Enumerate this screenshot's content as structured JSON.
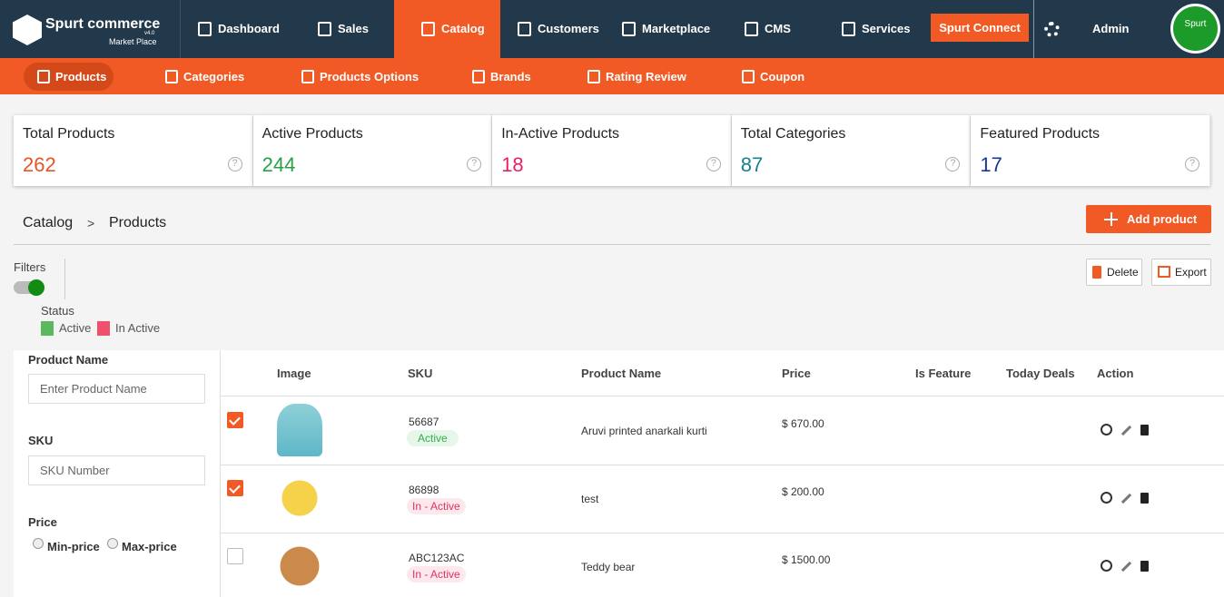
{
  "header": {
    "brand": "Spurt commerce",
    "brand_sub": "Market Place",
    "version": "v4.0",
    "nav": [
      "Dashboard",
      "Sales",
      "Catalog",
      "Customers",
      "Marketplace",
      "CMS",
      "Services"
    ],
    "active_nav": 2,
    "connect": "Spurt Connect",
    "user": "Admin",
    "avatar": "Spurt"
  },
  "subnav": {
    "items": [
      "Products",
      "Categories",
      "Products Options",
      "Brands",
      "Rating Review",
      "Coupon"
    ],
    "active": 0
  },
  "stats": [
    {
      "label": "Total Products",
      "value": 262,
      "color": "#e8542a"
    },
    {
      "label": "Active Products",
      "value": 244,
      "color": "#27a048"
    },
    {
      "label": "In-Active Products",
      "value": 18,
      "color": "#e91e63"
    },
    {
      "label": "Total Categories",
      "value": 87,
      "color": "#16808f"
    },
    {
      "label": "Featured Products",
      "value": 17,
      "color": "#1b3690"
    }
  ],
  "breadcrumb": {
    "items": [
      "Catalog",
      "Products"
    ],
    "separator": ">"
  },
  "add_button": "Add product",
  "toolbar": [
    "Delete",
    "Export"
  ],
  "filters": {
    "label": "Filters",
    "status_label": "Status",
    "legend": [
      {
        "label": "Active",
        "color": "#5cb85c"
      },
      {
        "label": "In Active",
        "color": "#f0506e"
      }
    ],
    "product_name": {
      "label": "Product Name",
      "placeholder": "Enter Product Name"
    },
    "sku": {
      "label": "SKU",
      "placeholder": "SKU Number"
    },
    "price": {
      "label": "Price",
      "options": [
        "Min-price",
        "Max-price"
      ]
    }
  },
  "table": {
    "columns": [
      "Image",
      "SKU",
      "Product Name",
      "Price",
      "Is Feature",
      "Today Deals",
      "Action"
    ],
    "rows": [
      {
        "checked": true,
        "sku": "56687",
        "status": "Active",
        "name": "Aruvi printed anarkali kurti",
        "price": "$ 670.00"
      },
      {
        "checked": true,
        "sku": "86898",
        "status": "In - Active",
        "name": "test",
        "price": "$ 200.00"
      },
      {
        "checked": false,
        "sku": "ABC123AC",
        "status": "In - Active",
        "name": "Teddy bear",
        "price": "$ 1500.00"
      }
    ]
  }
}
